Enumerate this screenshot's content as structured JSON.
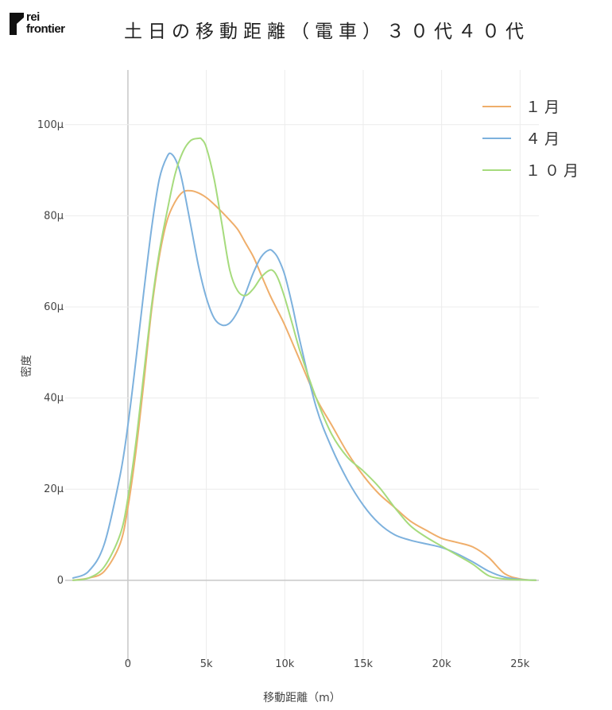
{
  "logo": {
    "line1": "rei",
    "line2": "frontier"
  },
  "chart_data": {
    "type": "line",
    "title": "土日の移動距離（電車）３０代４０代",
    "xlabel": "移動距離（m）",
    "ylabel": "密度",
    "xlim": [
      -4000,
      26200
    ],
    "ylim": [
      -1.8e-05,
      0.000112
    ],
    "x_ticks": [
      0,
      5000,
      10000,
      15000,
      20000,
      25000
    ],
    "x_tick_labels": [
      "0",
      "5k",
      "10k",
      "15k",
      "20k",
      "25k"
    ],
    "y_ticks": [
      0,
      2e-05,
      4e-05,
      6e-05,
      8e-05,
      0.0001
    ],
    "y_tick_labels": [
      "0",
      "20μ",
      "40μ",
      "60μ",
      "80μ",
      "100μ"
    ],
    "grid": true,
    "legend_position": "top-right",
    "series": [
      {
        "name": "１月",
        "color": "#EFAE6B",
        "x": [
          -3500,
          -2500,
          -1500,
          -500,
          0,
          500,
          1000,
          1500,
          2000,
          2500,
          3000,
          3500,
          4000,
          4500,
          5000,
          5500,
          6000,
          6500,
          7000,
          7500,
          8000,
          8500,
          9000,
          9500,
          10000,
          11000,
          12000,
          13000,
          14000,
          15000,
          16000,
          17000,
          18000,
          19000,
          20000,
          21000,
          22000,
          23000,
          24000,
          25000,
          26000
        ],
        "y": [
          0,
          5e-07,
          2e-06,
          8e-06,
          1.6e-05,
          2.8e-05,
          4.3e-05,
          5.9e-05,
          7.1e-05,
          7.9e-05,
          8.3e-05,
          8.52e-05,
          8.55e-05,
          8.5e-05,
          8.4e-05,
          8.25e-05,
          8.08e-05,
          7.9e-05,
          7.7e-05,
          7.4e-05,
          7.1e-05,
          6.7e-05,
          6.3e-05,
          5.95e-05,
          5.6e-05,
          4.8e-05,
          4e-05,
          3.4e-05,
          2.8e-05,
          2.3e-05,
          1.9e-05,
          1.6e-05,
          1.3e-05,
          1.1e-05,
          9.2e-06,
          8.3e-06,
          7.3e-06,
          5e-06,
          1.5e-06,
          3e-07,
          0
        ]
      },
      {
        "name": "４月",
        "color": "#7DB1DD",
        "x": [
          -3500,
          -2500,
          -1500,
          -500,
          0,
          500,
          1000,
          1500,
          2000,
          2500,
          2800,
          3200,
          3500,
          4000,
          4500,
          5000,
          5500,
          6000,
          6500,
          7000,
          7500,
          8000,
          8500,
          9000,
          9300,
          9600,
          10000,
          10500,
          11000,
          12000,
          13000,
          14000,
          15000,
          16000,
          17000,
          18000,
          19000,
          20000,
          21000,
          22000,
          23000,
          24000,
          25000,
          26000
        ],
        "y": [
          5e-07,
          2e-06,
          8e-06,
          2.3e-05,
          3.4e-05,
          4.8e-05,
          6.3e-05,
          7.7e-05,
          8.8e-05,
          9.3e-05,
          9.35e-05,
          9.1e-05,
          8.7e-05,
          7.8e-05,
          6.9e-05,
          6.2e-05,
          5.75e-05,
          5.6e-05,
          5.65e-05,
          5.9e-05,
          6.3e-05,
          6.75e-05,
          7.1e-05,
          7.25e-05,
          7.2e-05,
          7.05e-05,
          6.7e-05,
          6e-05,
          5.2e-05,
          3.8e-05,
          2.9e-05,
          2.2e-05,
          1.65e-05,
          1.25e-05,
          1e-05,
          8.8e-06,
          8e-06,
          7.2e-06,
          5.8e-06,
          4e-06,
          2e-06,
          7e-07,
          2e-07,
          0
        ]
      },
      {
        "name": "１０月",
        "color": "#A6DB7D",
        "x": [
          -3500,
          -2500,
          -1500,
          -500,
          0,
          500,
          1000,
          1500,
          2000,
          2500,
          3000,
          3500,
          4000,
          4500,
          4700,
          5000,
          5500,
          6000,
          6500,
          7000,
          7500,
          8000,
          8500,
          9000,
          9300,
          9600,
          10000,
          10500,
          11000,
          12000,
          13000,
          14000,
          15000,
          16000,
          17000,
          18000,
          19000,
          20000,
          21000,
          22000,
          23000,
          24000,
          25000,
          26000
        ],
        "y": [
          0,
          5e-07,
          3e-06,
          1e-05,
          1.8e-05,
          3e-05,
          4.5e-05,
          6e-05,
          7.2e-05,
          8.1e-05,
          8.9e-05,
          9.4e-05,
          9.65e-05,
          9.7e-05,
          9.68e-05,
          9.5e-05,
          8.8e-05,
          7.8e-05,
          6.8e-05,
          6.35e-05,
          6.25e-05,
          6.4e-05,
          6.65e-05,
          6.8e-05,
          6.78e-05,
          6.6e-05,
          6.2e-05,
          5.6e-05,
          5e-05,
          4e-05,
          3.2e-05,
          2.7e-05,
          2.4e-05,
          2.05e-05,
          1.6e-05,
          1.2e-05,
          9.5e-06,
          7.5e-06,
          5.5e-06,
          3.5e-06,
          1e-06,
          3e-07,
          1e-07,
          0
        ]
      }
    ]
  }
}
